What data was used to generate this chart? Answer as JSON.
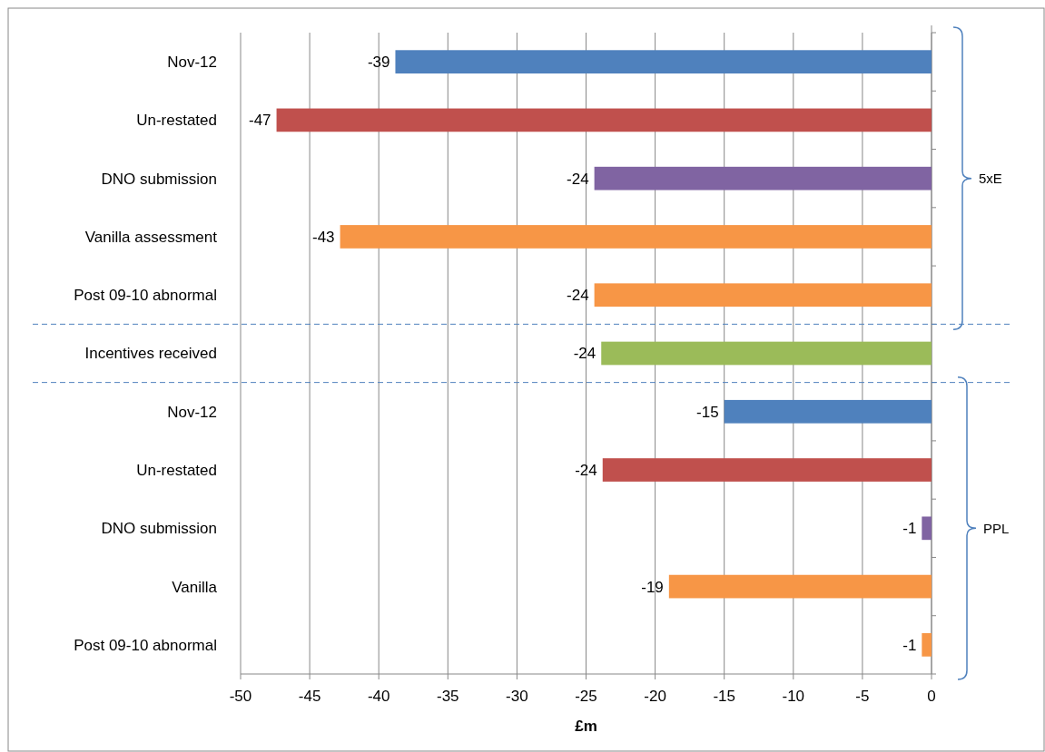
{
  "chart_data": {
    "type": "bar",
    "orientation": "horizontal",
    "xlabel": "£m",
    "categories": [
      "Nov-12",
      "Un-restated",
      "DNO submission",
      "Vanilla assessment",
      "Post 09-10 abnormal",
      "Incentives received",
      "Nov-12",
      "Un-restated",
      "DNO submission",
      "Vanilla",
      "Post 09-10 abnormal"
    ],
    "values": [
      -38.8,
      -47.4,
      -24.4,
      -42.8,
      -24.4,
      -23.9,
      -15.0,
      -23.8,
      -0.7,
      -19.0,
      -0.7
    ],
    "value_labels": [
      "-39",
      "-47",
      "-24",
      "-43",
      "-24",
      "-24",
      "-15",
      "-24",
      "-1",
      "-19",
      "-1"
    ],
    "colors": [
      "#4f81bd",
      "#c0504d",
      "#8064a2",
      "#f79646",
      "#f79646",
      "#9bbb59",
      "#4f81bd",
      "#c0504d",
      "#8064a2",
      "#f79646",
      "#f79646"
    ],
    "xlim": [
      -50,
      0
    ],
    "xticks": [
      -50,
      -45,
      -40,
      -35,
      -30,
      -25,
      -20,
      -15,
      -10,
      -5,
      0
    ],
    "grid": "x",
    "annotations": [
      "5xE",
      "PPL"
    ]
  }
}
